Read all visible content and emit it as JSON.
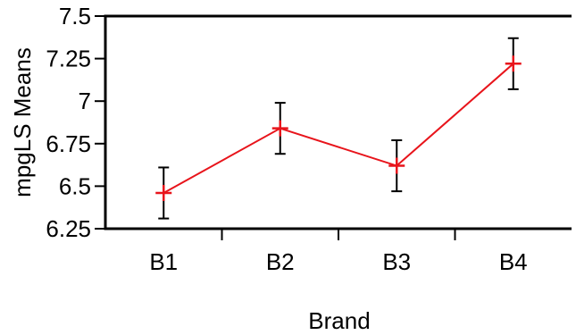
{
  "chart_data": {
    "type": "line",
    "title": "",
    "xlabel": "Brand",
    "ylabel": "mpgLS Means",
    "categories": [
      "B1",
      "B2",
      "B3",
      "B4"
    ],
    "ylim": [
      6.25,
      7.5
    ],
    "yticks": [
      6.25,
      6.5,
      6.75,
      7,
      7.25,
      7.5
    ],
    "ytick_labels": [
      "6.25",
      "6.5",
      "6.75",
      "7",
      "7.25",
      "7.5"
    ],
    "series": [
      {
        "values": [
          6.46,
          6.84,
          6.62,
          7.22
        ],
        "lower": [
          6.31,
          6.69,
          6.47,
          7.07
        ],
        "upper": [
          6.61,
          6.99,
          6.77,
          7.37
        ],
        "color": "#e8141b",
        "marker": "plus"
      }
    ],
    "errorbar_color": "#000000",
    "grid": false,
    "legend": "none"
  }
}
